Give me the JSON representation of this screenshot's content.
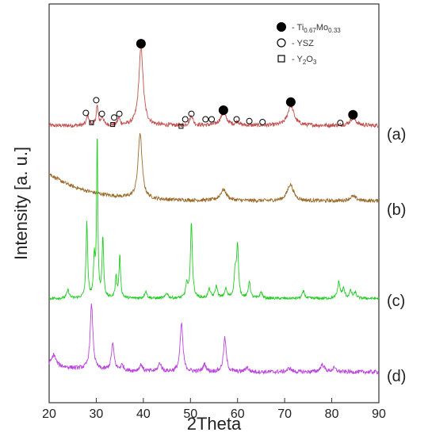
{
  "chart_data": {
    "type": "line",
    "xlabel": "2Theta",
    "ylabel": "Intensity [a. u.]",
    "xlim": [
      20,
      90
    ],
    "xticks": [
      20,
      30,
      40,
      50,
      60,
      70,
      80,
      90
    ],
    "yticks": "none",
    "grid": false,
    "legend": {
      "position": "top-right",
      "entries": [
        {
          "marker": "filled-circle",
          "label": "Ti0.67Mo0.33",
          "label_main": "Ti",
          "sub1": "0.67",
          "mid": "Mo",
          "sub2": "0.33"
        },
        {
          "marker": "open-circle",
          "label": "YSZ",
          "label_main": "YSZ"
        },
        {
          "marker": "open-square",
          "label": "Y2O3",
          "label_main": "Y",
          "sub1": "2",
          "mid": "O",
          "sub2": "3"
        }
      ]
    },
    "series": [
      {
        "name": "(a)",
        "color": "#c0504d",
        "background": 1.0,
        "slope": 0.0,
        "noise": 0.22,
        "peaks": [
          [
            28.2,
            1.1,
            0.3
          ],
          [
            30.2,
            2.1,
            0.25
          ],
          [
            31.3,
            0.9,
            0.3
          ],
          [
            34.8,
            0.8,
            0.3
          ],
          [
            39.5,
            8.6,
            0.55
          ],
          [
            50.2,
            1.1,
            0.4
          ],
          [
            57.0,
            1.3,
            0.8
          ],
          [
            60.0,
            0.4,
            0.4
          ],
          [
            71.3,
            2.2,
            0.8
          ],
          [
            84.5,
            0.8,
            0.8
          ]
        ]
      },
      {
        "name": "(b)",
        "color": "#9a6a2a",
        "background": 1.0,
        "slope": 3.0,
        "noise": 0.2,
        "peaks": [
          [
            39.3,
            7.2,
            0.5
          ],
          [
            57.0,
            1.2,
            0.8
          ],
          [
            71.2,
            1.8,
            0.8
          ],
          [
            84.5,
            0.5,
            0.8
          ]
        ]
      },
      {
        "name": "(c)",
        "color": "#22cc22",
        "background": 0.3,
        "slope": 0.0,
        "noise": 0.15,
        "peaks": [
          [
            24.0,
            0.9,
            0.3
          ],
          [
            28.0,
            8.4,
            0.2
          ],
          [
            29.6,
            4.3,
            0.2
          ],
          [
            30.2,
            18.0,
            0.15
          ],
          [
            31.4,
            6.6,
            0.2
          ],
          [
            34.2,
            2.3,
            0.2
          ],
          [
            35.0,
            4.6,
            0.2
          ],
          [
            40.5,
            0.8,
            0.3
          ],
          [
            45.0,
            0.6,
            0.3
          ],
          [
            49.2,
            1.5,
            0.25
          ],
          [
            50.2,
            8.2,
            0.25
          ],
          [
            54.0,
            1.0,
            0.3
          ],
          [
            55.5,
            1.3,
            0.3
          ],
          [
            57.5,
            1.0,
            0.3
          ],
          [
            59.5,
            2.8,
            0.25
          ],
          [
            60.0,
            5.5,
            0.25
          ],
          [
            62.5,
            1.9,
            0.25
          ],
          [
            65.0,
            0.7,
            0.3
          ],
          [
            74.0,
            0.8,
            0.3
          ],
          [
            81.5,
            1.8,
            0.3
          ],
          [
            82.5,
            1.0,
            0.3
          ],
          [
            84.0,
            0.8,
            0.3
          ],
          [
            85.0,
            0.6,
            0.3
          ]
        ]
      },
      {
        "name": "(d)",
        "color": "#bb44dd",
        "background": 0.5,
        "slope": 0.8,
        "noise": 0.22,
        "peaks": [
          [
            21.0,
            1.2,
            0.5
          ],
          [
            29.0,
            7.1,
            0.35
          ],
          [
            33.5,
            2.9,
            0.35
          ],
          [
            35.5,
            0.6,
            0.4
          ],
          [
            39.5,
            0.7,
            0.4
          ],
          [
            43.5,
            0.9,
            0.4
          ],
          [
            48.1,
            5.3,
            0.35
          ],
          [
            53.0,
            0.8,
            0.4
          ],
          [
            57.3,
            3.7,
            0.35
          ],
          [
            62.0,
            0.5,
            0.4
          ],
          [
            71.0,
            0.4,
            0.5
          ],
          [
            78.0,
            0.8,
            0.5
          ],
          [
            80.5,
            0.4,
            0.5
          ]
        ]
      }
    ],
    "annotations": {
      "ti_mo_peaks": [
        [
          39.5,
          8.6
        ],
        [
          57.0,
          1.3
        ],
        [
          71.3,
          2.2
        ],
        [
          84.5,
          0.8
        ]
      ],
      "ysz_peaks": [
        [
          27.8,
          1.7
        ],
        [
          30.0,
          3.1
        ],
        [
          31.2,
          1.6
        ],
        [
          33.8,
          1.2
        ],
        [
          34.9,
          1.6
        ],
        [
          48.9,
          1.0
        ],
        [
          50.2,
          1.6
        ],
        [
          53.2,
          1.0
        ],
        [
          54.5,
          1.0
        ],
        [
          59.8,
          1.0
        ],
        [
          62.5,
          0.8
        ],
        [
          65.3,
          0.7
        ],
        [
          81.8,
          0.6
        ]
      ],
      "y2o3_peaks": [
        [
          29.0,
          0.8
        ],
        [
          33.5,
          0.6
        ],
        [
          48.0,
          0.4
        ]
      ]
    }
  }
}
